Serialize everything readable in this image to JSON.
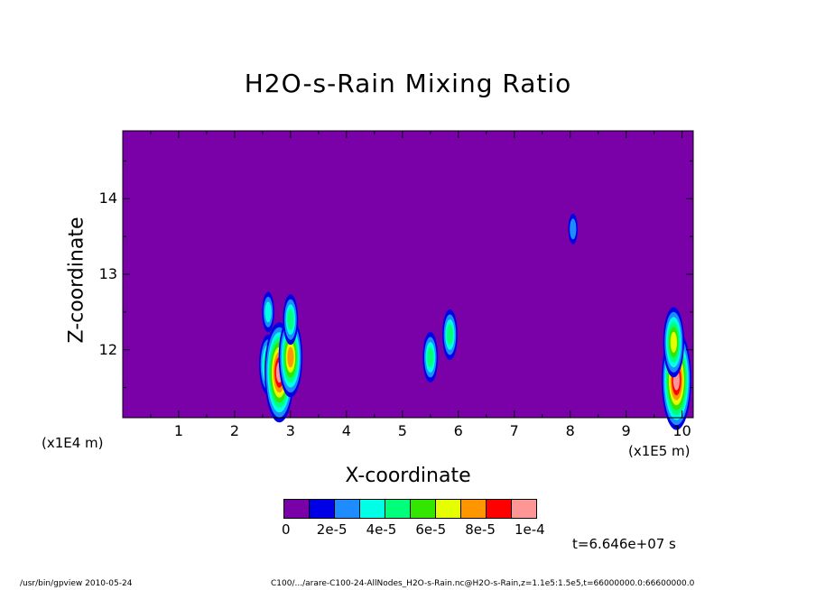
{
  "chart_data": {
    "type": "heatmap",
    "title": "H2O-s-Rain Mixing Ratio",
    "xlabel": "X-coordinate",
    "ylabel": "Z-coordinate",
    "x_unit_label": "(x1E5 m)",
    "y_unit_label": "(x1E4 m)",
    "xlim": [
      0,
      10.2
    ],
    "ylim": [
      11.1,
      14.9
    ],
    "x_ticks": [
      "1",
      "2",
      "3",
      "4",
      "5",
      "6",
      "7",
      "8",
      "9",
      "10"
    ],
    "y_ticks": [
      "12",
      "13",
      "14"
    ],
    "colorbar": {
      "colors": [
        "#7a00a8",
        "#0000e6",
        "#1e8cff",
        "#00ffe6",
        "#00ff7a",
        "#32e600",
        "#e6ff00",
        "#ff9600",
        "#ff0000",
        "#ff9696"
      ],
      "tick_labels": [
        "0",
        "2e-5",
        "4e-5",
        "6e-5",
        "8e-5",
        "1e-4"
      ]
    },
    "background_level": 0,
    "features": [
      {
        "x": 2.6,
        "z": 11.8,
        "level": 5
      },
      {
        "x": 2.8,
        "z": 11.7,
        "level": 9
      },
      {
        "x": 3.0,
        "z": 11.9,
        "level": 7
      },
      {
        "x": 3.0,
        "z": 12.4,
        "level": 4
      },
      {
        "x": 2.6,
        "z": 12.5,
        "level": 3
      },
      {
        "x": 5.5,
        "z": 11.9,
        "level": 4
      },
      {
        "x": 5.85,
        "z": 12.2,
        "level": 4
      },
      {
        "x": 8.05,
        "z": 13.6,
        "level": 2
      },
      {
        "x": 9.9,
        "z": 11.6,
        "level": 9
      },
      {
        "x": 9.85,
        "z": 12.1,
        "level": 6
      }
    ]
  },
  "time_label": "t=6.646e+07 s",
  "footer": {
    "left": "/usr/bin/gpview  2010-05-24",
    "right": "C100/.../arare-C100-24-AllNodes_H2O-s-Rain.nc@H2O-s-Rain,z=1.1e5:1.5e5,t=66000000.0:66600000.0"
  }
}
